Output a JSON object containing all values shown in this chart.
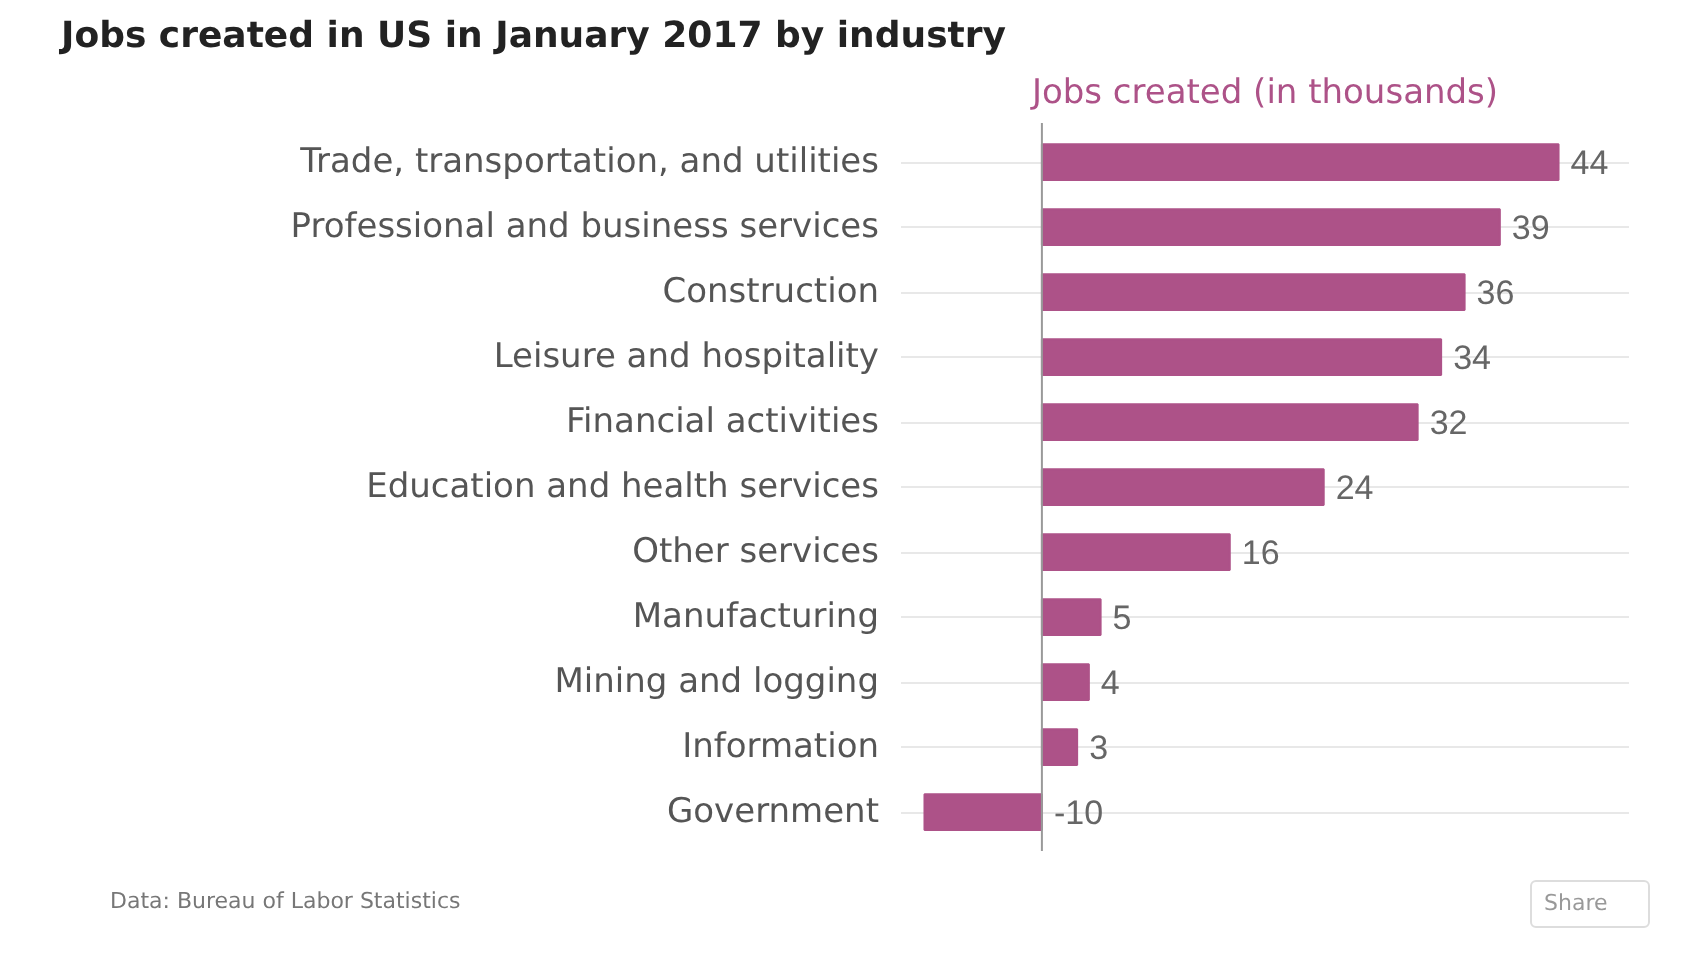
{
  "chart_data": {
    "type": "bar",
    "orientation": "horizontal",
    "title": "Jobs created in US in January 2017 by industry",
    "xlabel": "Jobs created (in thousands)",
    "categories": [
      "Trade, transportation, and utilities",
      "Professional and business services",
      "Construction",
      "Leisure and hospitality",
      "Financial activities",
      "Education and health services",
      "Other services",
      "Manufacturing",
      "Mining and logging",
      "Information",
      "Government"
    ],
    "values": [
      44,
      39,
      36,
      34,
      32,
      24,
      16,
      5,
      4,
      3,
      -10
    ],
    "color": "#ad5288",
    "xlim": [
      -12,
      50
    ],
    "data_labels": true,
    "grid": "y",
    "tick_labels": "y",
    "annotations": [
      "Data: Bureau of Labor Statistics",
      "Share"
    ]
  }
}
